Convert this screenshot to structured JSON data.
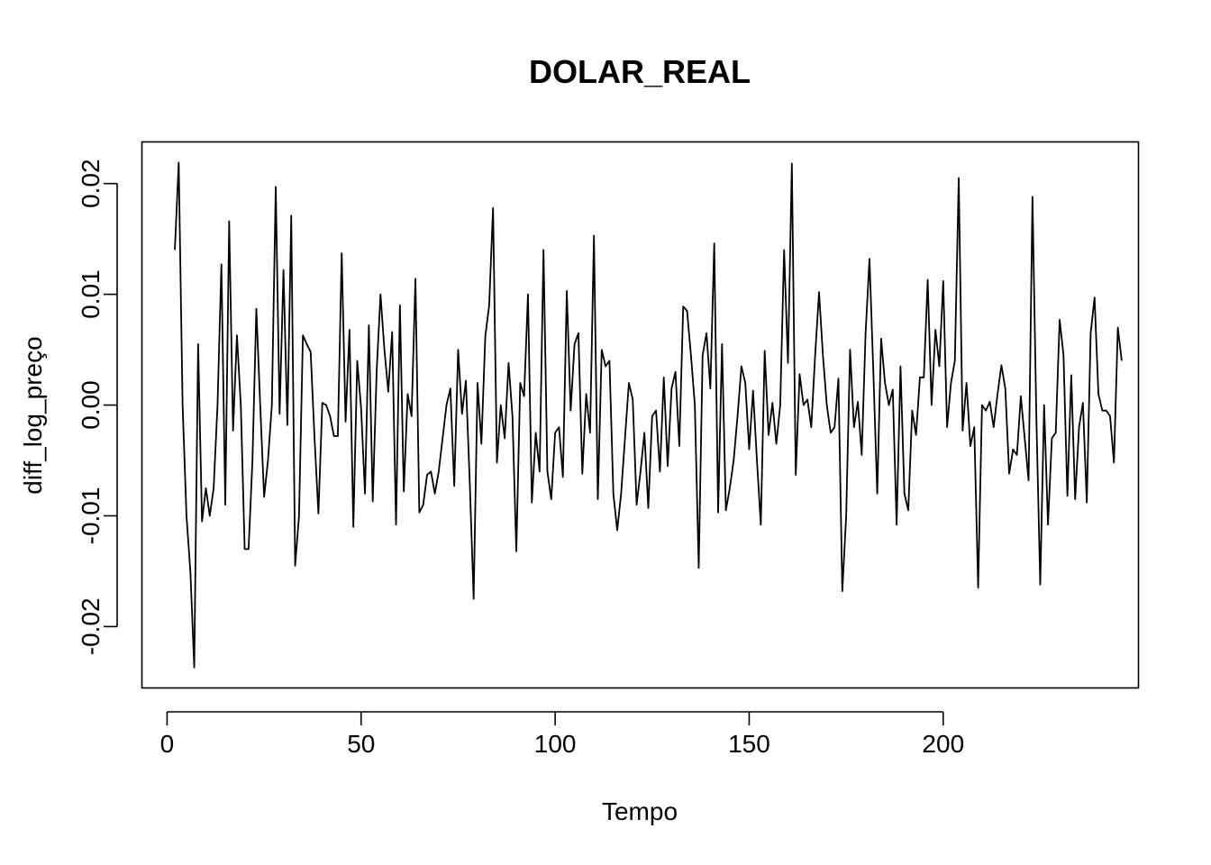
{
  "chart_data": {
    "type": "line",
    "title": "DOLAR_REAL",
    "xlabel": "Tempo",
    "ylabel": "diff_log_preço",
    "xlim": [
      -6.6,
      250.2
    ],
    "ylim": [
      -0.0255,
      0.0238
    ],
    "x_ticks": [
      0,
      50,
      100,
      150,
      200
    ],
    "x_tick_labels": [
      "0",
      "50",
      "100",
      "150",
      "200"
    ],
    "y_ticks": [
      -0.02,
      -0.01,
      0.0,
      0.01,
      0.02
    ],
    "y_tick_labels": [
      "-0.02",
      "-0.01",
      "0.00",
      "0.01",
      "0.02"
    ],
    "grid": false,
    "line_color": "#000000",
    "x_start": 2,
    "values": [
      0.014,
      0.0219,
      0.0,
      -0.01,
      -0.015,
      -0.0237,
      0.0055,
      -0.0105,
      -0.0075,
      -0.01,
      -0.0075,
      0.0,
      0.0127,
      -0.009,
      0.0166,
      -0.0023,
      0.0063,
      0.0,
      -0.013,
      -0.013,
      -0.005,
      0.0087,
      0.0,
      -0.0083,
      -0.005,
      0.0,
      0.0197,
      -0.0008,
      0.0122,
      -0.0018,
      0.0171,
      -0.0145,
      -0.01,
      0.0063,
      0.0055,
      0.0048,
      -0.003,
      -0.0098,
      0.0002,
      0.0,
      -0.001,
      -0.0028,
      -0.0028,
      0.0137,
      -0.0015,
      0.0068,
      -0.011,
      0.004,
      -0.0003,
      -0.008,
      0.0072,
      -0.0087,
      0.003,
      0.01,
      0.005,
      0.0012,
      0.0066,
      -0.0108,
      0.009,
      -0.0078,
      0.001,
      -0.001,
      0.0114,
      -0.0097,
      -0.009,
      -0.0063,
      -0.006,
      -0.008,
      -0.006,
      -0.003,
      0.0,
      0.0015,
      -0.0073,
      0.005,
      -0.0008,
      0.0022,
      -0.007,
      -0.0175,
      0.002,
      -0.0035,
      0.0062,
      0.009,
      0.0178,
      -0.0052,
      0.0,
      -0.003,
      0.0038,
      -0.001,
      -0.0132,
      0.002,
      0.0008,
      0.01,
      -0.0088,
      -0.0025,
      -0.006,
      0.014,
      -0.006,
      -0.0085,
      -0.0025,
      -0.002,
      -0.0065,
      0.0103,
      -0.0005,
      0.0055,
      0.0065,
      -0.0062,
      0.001,
      -0.0025,
      0.0153,
      -0.0085,
      0.005,
      0.0035,
      0.004,
      -0.008,
      -0.0113,
      -0.008,
      -0.003,
      0.002,
      0.0005,
      -0.009,
      -0.006,
      -0.0025,
      -0.0093,
      -0.001,
      -0.0005,
      -0.006,
      0.0025,
      -0.0055,
      0.0015,
      0.003,
      -0.0037,
      0.0089,
      0.0085,
      0.0045,
      0.0,
      -0.0147,
      0.0045,
      0.0065,
      0.0015,
      0.0146,
      -0.0097,
      0.0055,
      -0.0095,
      -0.0075,
      -0.005,
      -0.001,
      0.0035,
      0.002,
      -0.004,
      0.0013,
      -0.005,
      -0.0108,
      0.0049,
      -0.0027,
      0.0002,
      -0.0035,
      0.0,
      0.014,
      0.0038,
      0.0218,
      -0.0063,
      0.0028,
      0.0,
      0.0005,
      -0.002,
      0.0045,
      0.0102,
      0.0045,
      0.0,
      -0.0025,
      -0.002,
      0.0024,
      -0.0168,
      -0.01,
      0.005,
      -0.002,
      0.0003,
      -0.0045,
      0.0065,
      0.0132,
      0.003,
      -0.008,
      0.006,
      0.002,
      0.0,
      0.0014,
      -0.0108,
      0.0035,
      -0.008,
      -0.0095,
      -0.0005,
      -0.0027,
      0.0025,
      0.0025,
      0.0113,
      0.0,
      0.0068,
      0.0035,
      0.0112,
      -0.002,
      0.002,
      0.004,
      0.0205,
      -0.0023,
      0.002,
      -0.0037,
      -0.002,
      -0.0165,
      0.0,
      -0.0005,
      0.0003,
      -0.002,
      0.001,
      0.0036,
      0.0015,
      -0.0062,
      -0.004,
      -0.0045,
      0.0008,
      -0.003,
      -0.0068,
      0.0188,
      -0.001,
      -0.0162,
      0.0,
      -0.0108,
      -0.003,
      -0.0025,
      0.0077,
      0.0045,
      -0.0082,
      0.0027,
      -0.0085,
      -0.002,
      0.0002,
      -0.0088,
      0.0065,
      0.0097,
      0.001,
      -0.0005,
      -0.0005,
      -0.001,
      -0.0052,
      0.007,
      0.004
    ]
  }
}
